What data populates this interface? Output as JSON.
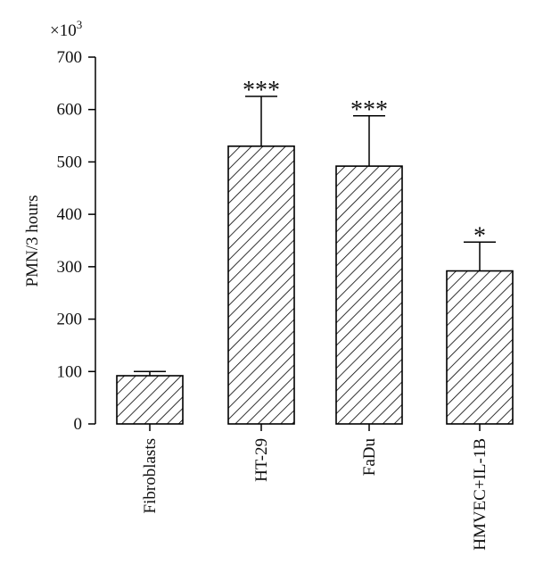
{
  "chart_data": {
    "type": "bar",
    "title": "",
    "xlabel": "",
    "ylabel": "PMN/3 hours",
    "y_multiplier": "×10",
    "y_multiplier_exponent": "3",
    "ylim": [
      0,
      700
    ],
    "yticks": [
      0,
      100,
      200,
      300,
      400,
      500,
      600,
      700
    ],
    "grid": false,
    "legend": "none",
    "bar_fill": "hatched",
    "colors": {
      "bar_stroke": "#000000",
      "hatch": "#000000",
      "background": "#ffffff"
    },
    "categories": [
      "Fibroblasts",
      "HT-29",
      "FaDu",
      "HMVEC+IL-1B"
    ],
    "values": [
      92,
      530,
      492,
      292
    ],
    "errors": [
      8,
      95,
      96,
      55
    ],
    "significance": [
      "",
      "***",
      "***",
      "*"
    ]
  }
}
